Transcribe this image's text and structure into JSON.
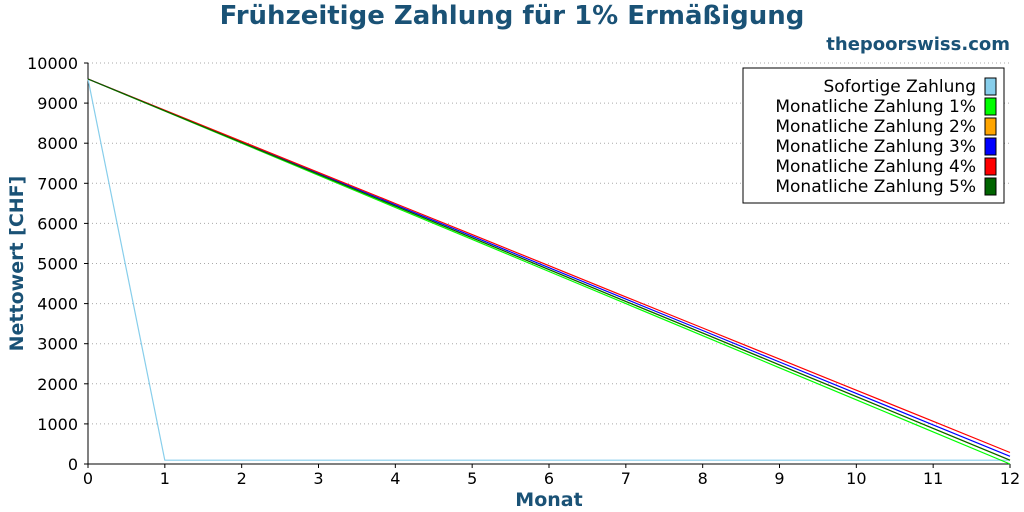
{
  "chart_data": {
    "type": "line",
    "title": "Frühzeitige Zahlung für 1% Ermäßigung",
    "watermark": "thepoorswiss.com",
    "xlabel": "Monat",
    "ylabel": "Nettowert [CHF]",
    "xlim": [
      0,
      12
    ],
    "ylim": [
      0,
      10000
    ],
    "xticks": [
      "0",
      "1",
      "2",
      "3",
      "4",
      "5",
      "6",
      "7",
      "8",
      "9",
      "10",
      "11",
      "12"
    ],
    "yticks": [
      "0",
      "1000",
      "2000",
      "3000",
      "4000",
      "5000",
      "6000",
      "7000",
      "8000",
      "9000",
      "10000"
    ],
    "grid": "horizontal-dotted",
    "legend_position": "top-right",
    "x": [
      0,
      1,
      2,
      3,
      4,
      5,
      6,
      7,
      8,
      9,
      10,
      11,
      12
    ],
    "series": [
      {
        "name": "Sofortige Zahlung",
        "color": "#87ceeb",
        "values": [
          9600,
          96,
          96,
          96,
          96,
          96,
          96,
          96,
          96,
          96,
          96,
          96,
          96
        ]
      },
      {
        "name": "Monatliche Zahlung 1%",
        "color": "#00ff00",
        "values": [
          9600,
          8800,
          8000,
          7200,
          6400,
          5600,
          4800,
          4000,
          3200,
          2400,
          1600,
          800,
          0
        ]
      },
      {
        "name": "Monatliche Zahlung 2%",
        "color": "#ffa500",
        "values": [
          9600,
          8808,
          8016,
          7224,
          6432,
          5640,
          4848,
          4056,
          3264,
          2472,
          1680,
          888,
          96
        ]
      },
      {
        "name": "Monatliche Zahlung 3%",
        "color": "#0000ff",
        "values": [
          9600,
          8816,
          8032,
          7248,
          6464,
          5680,
          4896,
          4112,
          3328,
          2544,
          1760,
          976,
          192
        ]
      },
      {
        "name": "Monatliche Zahlung 4%",
        "color": "#ff0000",
        "values": [
          9600,
          8824,
          8048,
          7272,
          6496,
          5720,
          4944,
          4168,
          3392,
          2616,
          1840,
          1064,
          288
        ]
      },
      {
        "name": "Monatliche Zahlung 5%",
        "color": "#006400",
        "values": [
          9600,
          8808,
          8016,
          7224,
          6432,
          5640,
          4848,
          4056,
          3264,
          2472,
          1680,
          888,
          96
        ]
      }
    ]
  }
}
